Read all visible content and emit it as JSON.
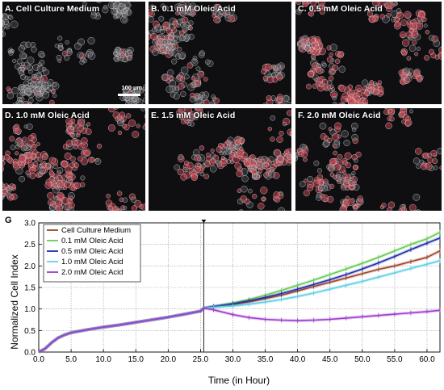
{
  "panels": [
    {
      "letter": "A",
      "label": "Cell Culture Medium",
      "density": 0.55,
      "tint": 0.05
    },
    {
      "letter": "B",
      "label": "0.1 mM Oleic Acid",
      "density": 0.55,
      "tint": 0.35
    },
    {
      "letter": "C",
      "label": "0.5 mM Oleic Acid",
      "density": 0.7,
      "tint": 0.8
    },
    {
      "letter": "D",
      "label": "1.0 mM Oleic Acid",
      "density": 0.6,
      "tint": 0.75
    },
    {
      "letter": "E",
      "label": "1.5 mM Oleic Acid",
      "density": 0.5,
      "tint": 0.7
    },
    {
      "letter": "F",
      "label": "2.0 mM Oleic Acid",
      "density": 0.42,
      "tint": 0.65
    }
  ],
  "scale_bar": {
    "label": "100 µm"
  },
  "colors": {
    "cell_outline": "#d8d8d8",
    "lipid_red": "#c0404a",
    "background": "#0f0f12"
  },
  "chart_data": {
    "type": "line",
    "panel_letter": "G",
    "xlabel": "Time (in Hour)",
    "ylabel": "Normalized Cell Index",
    "xlim": [
      0,
      62
    ],
    "ylim": [
      0,
      3.0
    ],
    "xticks": [
      "0.0",
      "5.0",
      "10.0",
      "15.0",
      "20.0",
      "25.0",
      "30.0",
      "35.0",
      "40.0",
      "45.0",
      "50.0",
      "55.0",
      "60.0"
    ],
    "yticks": [
      "0.0",
      "0.5",
      "1.0",
      "1.5",
      "2.0",
      "2.5",
      "3.0"
    ],
    "grid": true,
    "vertical_marker_x": 25.5,
    "legend_position": "top-left",
    "series": [
      {
        "name": "Cell Culture Medium",
        "color": "#a0442c",
        "x": [
          0,
          1,
          2,
          3,
          4,
          5,
          7.5,
          10,
          12.5,
          15,
          17.5,
          20,
          22.5,
          25,
          25.5,
          27,
          30,
          32.5,
          35,
          37.5,
          40,
          42.5,
          45,
          47.5,
          50,
          52.5,
          55,
          57.5,
          60,
          62
        ],
        "y": [
          0,
          0.08,
          0.22,
          0.33,
          0.4,
          0.45,
          0.52,
          0.58,
          0.63,
          0.69,
          0.75,
          0.81,
          0.88,
          0.95,
          1.02,
          1.05,
          1.1,
          1.16,
          1.24,
          1.32,
          1.42,
          1.52,
          1.62,
          1.72,
          1.82,
          1.92,
          2.0,
          2.1,
          2.2,
          2.35
        ]
      },
      {
        "name": "0.1 mM Oleic Acid",
        "color": "#66cc55",
        "x": [
          0,
          1,
          2,
          3,
          4,
          5,
          7.5,
          10,
          12.5,
          15,
          17.5,
          20,
          22.5,
          25,
          25.5,
          27,
          30,
          32.5,
          35,
          37.5,
          40,
          42.5,
          45,
          47.5,
          50,
          52.5,
          55,
          57.5,
          60,
          62
        ],
        "y": [
          0,
          0.08,
          0.22,
          0.33,
          0.4,
          0.45,
          0.52,
          0.58,
          0.63,
          0.69,
          0.75,
          0.81,
          0.88,
          0.95,
          1.02,
          1.06,
          1.14,
          1.22,
          1.32,
          1.43,
          1.55,
          1.67,
          1.8,
          1.93,
          2.06,
          2.2,
          2.35,
          2.5,
          2.63,
          2.78
        ]
      },
      {
        "name": "0.5 mM Oleic Acid",
        "color": "#1f2fa8",
        "x": [
          0,
          1,
          2,
          3,
          4,
          5,
          7.5,
          10,
          12.5,
          15,
          17.5,
          20,
          22.5,
          25,
          25.5,
          27,
          30,
          32.5,
          35,
          37.5,
          40,
          42.5,
          45,
          47.5,
          50,
          52.5,
          55,
          57.5,
          60,
          62
        ],
        "y": [
          0,
          0.08,
          0.22,
          0.33,
          0.4,
          0.45,
          0.52,
          0.58,
          0.63,
          0.69,
          0.75,
          0.81,
          0.88,
          0.95,
          1.02,
          1.06,
          1.12,
          1.19,
          1.27,
          1.36,
          1.46,
          1.57,
          1.68,
          1.8,
          1.93,
          2.07,
          2.22,
          2.38,
          2.53,
          2.65
        ]
      },
      {
        "name": "1.0 mM Oleic Acid",
        "color": "#5fd0e6",
        "x": [
          0,
          1,
          2,
          3,
          4,
          5,
          7.5,
          10,
          12.5,
          15,
          17.5,
          20,
          22.5,
          25,
          25.5,
          27,
          30,
          32.5,
          35,
          37.5,
          40,
          42.5,
          45,
          47.5,
          50,
          52.5,
          55,
          57.5,
          60,
          62
        ],
        "y": [
          0,
          0.08,
          0.22,
          0.33,
          0.4,
          0.45,
          0.52,
          0.58,
          0.63,
          0.69,
          0.75,
          0.81,
          0.88,
          0.95,
          1.02,
          1.04,
          1.07,
          1.11,
          1.16,
          1.22,
          1.29,
          1.37,
          1.46,
          1.55,
          1.64,
          1.74,
          1.84,
          1.94,
          2.04,
          2.12
        ]
      },
      {
        "name": "2.0 mM Oleic Acid",
        "color": "#a03ad0",
        "x": [
          0,
          1,
          2,
          3,
          4,
          5,
          7.5,
          10,
          12.5,
          15,
          17.5,
          20,
          22.5,
          25,
          25.5,
          27,
          30,
          32.5,
          35,
          37.5,
          40,
          42.5,
          45,
          47.5,
          50,
          52.5,
          55,
          57.5,
          60,
          62
        ],
        "y": [
          0,
          0.08,
          0.22,
          0.33,
          0.4,
          0.45,
          0.52,
          0.58,
          0.63,
          0.69,
          0.75,
          0.81,
          0.88,
          0.95,
          1.02,
          0.98,
          0.87,
          0.8,
          0.76,
          0.74,
          0.73,
          0.74,
          0.76,
          0.79,
          0.82,
          0.85,
          0.88,
          0.91,
          0.94,
          0.97
        ]
      }
    ]
  }
}
